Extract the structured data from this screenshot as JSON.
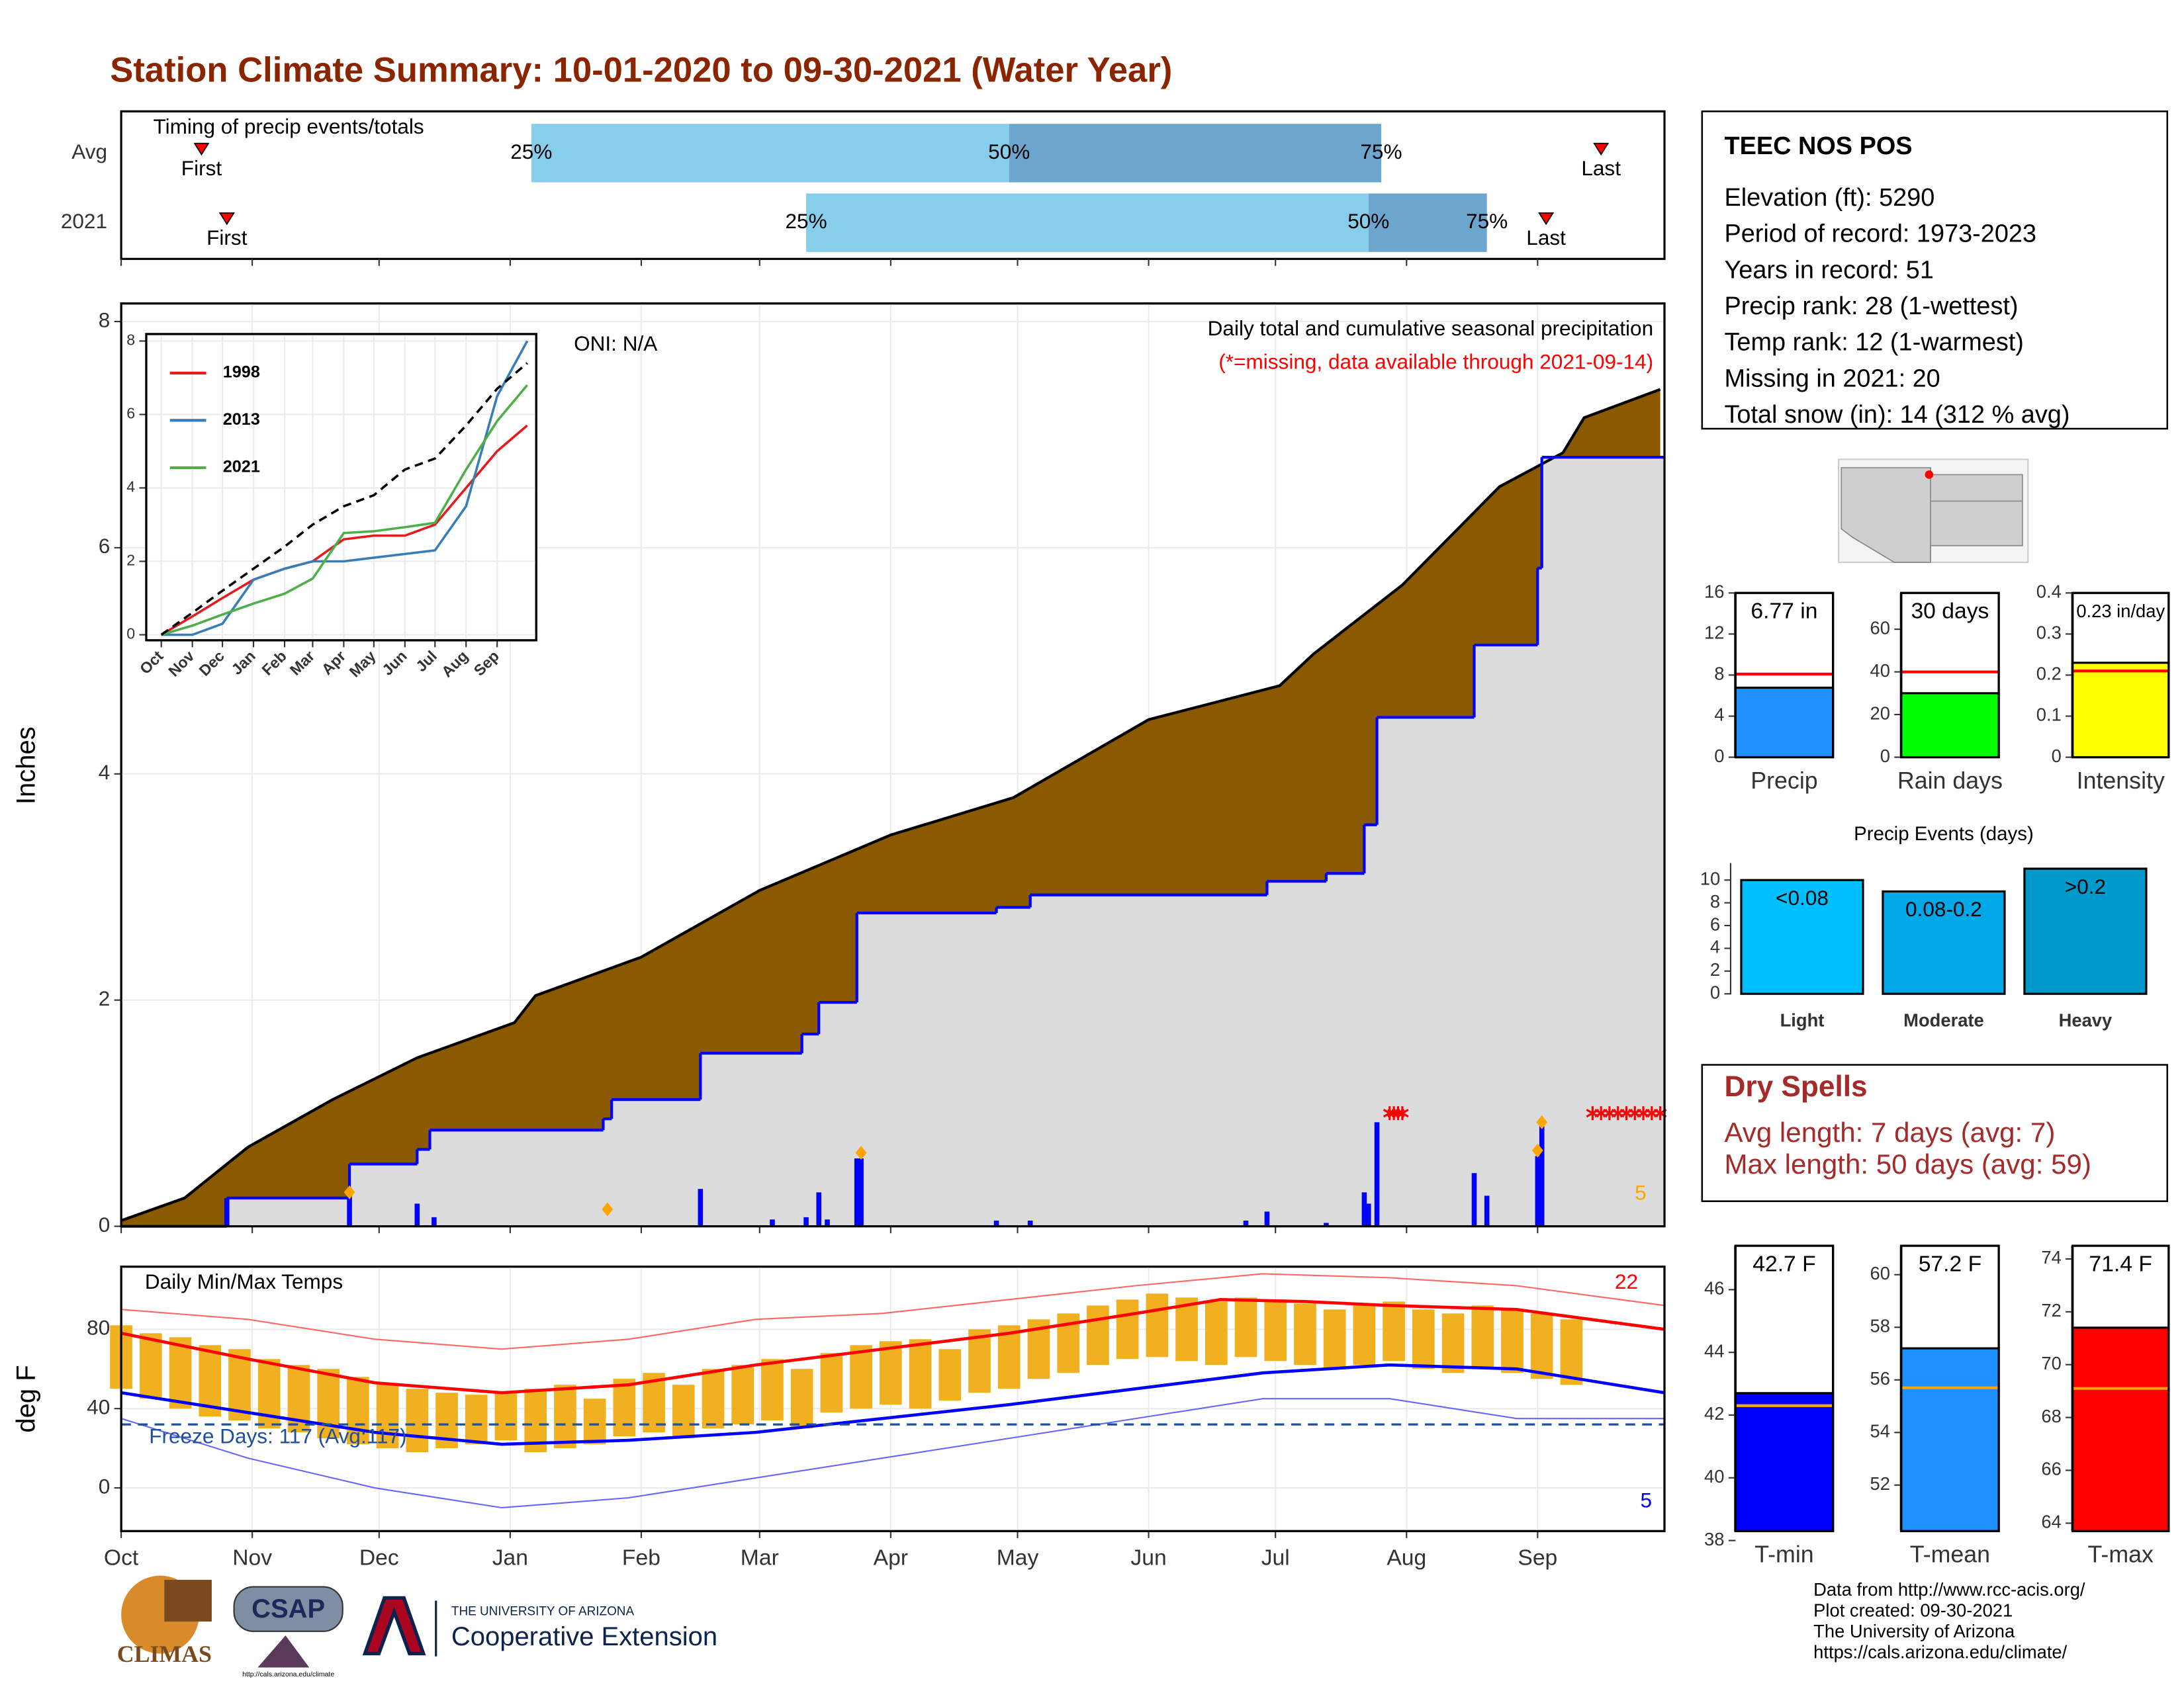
{
  "title": "Station Climate Summary: 10-01-2020 to 09-30-2021 (Water Year)",
  "chart_data": [
    {
      "type": "range",
      "title": "Timing of precip events/totals",
      "xlim": [
        0,
        365
      ],
      "xticks": [
        0,
        31,
        61,
        92,
        123,
        151,
        182,
        212,
        243,
        273,
        304,
        335
      ],
      "quantile_labels": [
        "25%",
        "50%",
        "75%"
      ],
      "first_label": "First",
      "last_label": "Last",
      "colors": [
        "#87ceeb",
        "#6ca6cd"
      ],
      "marker_color": "#ff0000",
      "rows": [
        {
          "name": "Avg",
          "first": 19,
          "quantiles": [
            97,
            210,
            298
          ],
          "last": 350
        },
        {
          "name": "2021",
          "first": 25,
          "quantiles": [
            162,
            295,
            323
          ],
          "last": 337
        }
      ]
    },
    {
      "type": "area",
      "ylabel": "Inches",
      "xlim": [
        0,
        365
      ],
      "ylim": [
        0,
        8.16
      ],
      "yticks": [
        0,
        2,
        4,
        6,
        8
      ],
      "xticks": [
        0,
        31,
        61,
        92,
        123,
        151,
        182,
        212,
        243,
        273,
        304,
        335
      ],
      "grid": true,
      "annotations": [
        "ONI: N/A",
        "Daily total and cumulative seasonal precipitation",
        "(*=missing, data available through 2021-09-14)",
        "5"
      ],
      "series": [
        {
          "color": "#000000",
          "fill": "#8b5a00",
          "x": [
            0,
            15,
            25,
            30,
            50,
            70,
            93,
            98,
            123,
            151,
            182,
            211,
            243,
            274,
            282,
            303,
            326,
            335,
            341,
            346,
            364
          ],
          "values": [
            0.05,
            0.25,
            0.55,
            0.7,
            1.12,
            1.49,
            1.8,
            2.04,
            2.38,
            2.97,
            3.46,
            3.79,
            4.48,
            4.78,
            5.06,
            5.67,
            6.54,
            6.72,
            6.84,
            7.15,
            7.4
          ]
        },
        {
          "color": "#0000ff",
          "fill": "#dcdcdc",
          "step": true,
          "x": [
            0,
            25,
            54,
            70,
            73,
            114,
            116,
            137,
            161,
            165,
            174,
            207,
            215,
            271,
            285,
            294,
            297,
            320,
            335,
            336
          ],
          "values": [
            0,
            0.25,
            0.55,
            0.68,
            0.85,
            0.95,
            1.12,
            1.53,
            1.7,
            1.98,
            2.77,
            2.82,
            2.93,
            3.05,
            3.12,
            3.55,
            4.5,
            5.14,
            5.82,
            6.8
          ]
        }
      ],
      "bars": {
        "color": "#0000ff",
        "x": [
          25,
          54,
          70,
          74,
          137,
          154,
          162,
          165,
          167,
          174,
          175,
          207,
          215,
          266,
          271,
          285,
          294,
          295,
          297,
          320,
          323,
          335,
          336
        ],
        "values": [
          0.25,
          0.27,
          0.2,
          0.08,
          0.33,
          0.06,
          0.08,
          0.3,
          0.06,
          0.6,
          0.6,
          0.05,
          0.05,
          0.05,
          0.13,
          0.03,
          0.3,
          0.2,
          0.92,
          0.47,
          0.27,
          0.62,
          0.92
        ]
      },
      "snow": {
        "color": "#ffa500",
        "x": [
          54,
          115,
          175,
          335,
          336
        ],
        "values": [
          0.3,
          0.15,
          0.65,
          0.67,
          0.92
        ]
      },
      "missing": {
        "color": "#ff0000",
        "x": [
          300,
          301,
          302,
          303,
          348,
          350,
          352,
          354,
          356,
          358,
          360,
          362,
          364
        ],
        "values": [
          1,
          1,
          1,
          1,
          1,
          1,
          1,
          1,
          1,
          1,
          1,
          1,
          1
        ]
      }
    },
    {
      "type": "line",
      "xlim": [
        -15,
        374
      ],
      "ylim": [
        -0.15,
        8.19
      ],
      "yticks": [
        0,
        2,
        4,
        6,
        8
      ],
      "xticks": [
        {
          "value": 0,
          "label": "Oct"
        },
        {
          "value": 31,
          "label": "Nov"
        },
        {
          "value": 61,
          "label": "Dec"
        },
        {
          "value": 92,
          "label": "Jan"
        },
        {
          "value": 123,
          "label": "Feb"
        },
        {
          "value": 151,
          "label": "Mar"
        },
        {
          "value": 182,
          "label": "Apr"
        },
        {
          "value": 212,
          "label": "May"
        },
        {
          "value": 243,
          "label": "Jun"
        },
        {
          "value": 273,
          "label": "Jul"
        },
        {
          "value": 304,
          "label": "Aug"
        },
        {
          "value": 335,
          "label": "Sep"
        }
      ],
      "grid": true,
      "legend": "top-left",
      "x": [
        0,
        31,
        61,
        92,
        123,
        151,
        182,
        212,
        243,
        273,
        304,
        335,
        365
      ],
      "series": [
        {
          "name": "1998",
          "color": "#e41a1c",
          "values": [
            0,
            0.5,
            1.0,
            1.5,
            1.8,
            2.0,
            2.6,
            2.7,
            2.7,
            3.0,
            4.0,
            5.0,
            5.7
          ]
        },
        {
          "name": "2013",
          "color": "#377eb8",
          "values": [
            0,
            0,
            0.3,
            1.5,
            1.8,
            2.0,
            2.0,
            2.1,
            2.2,
            2.3,
            3.5,
            6.5,
            8.0
          ]
        },
        {
          "name": "2021",
          "color": "#4daf4a",
          "values": [
            0,
            0.25,
            0.55,
            0.85,
            1.12,
            1.53,
            2.77,
            2.82,
            2.93,
            3.05,
            4.5,
            5.82,
            6.8
          ]
        },
        {
          "color": "#000000",
          "dashed": true,
          "values": [
            0,
            0.6,
            1.2,
            1.8,
            2.4,
            3.0,
            3.5,
            3.8,
            4.5,
            4.8,
            5.7,
            6.7,
            7.4
          ]
        }
      ]
    },
    {
      "type": "band",
      "ylabel": "deg F",
      "xlim": [
        0,
        365
      ],
      "ylim": [
        -21.8,
        111.6
      ],
      "yticks": [
        0,
        40,
        80
      ],
      "xticks": [
        {
          "value": 0,
          "label": "Oct"
        },
        {
          "value": 31,
          "label": "Nov"
        },
        {
          "value": 61,
          "label": "Dec"
        },
        {
          "value": 92,
          "label": "Jan"
        },
        {
          "value": 123,
          "label": "Feb"
        },
        {
          "value": 151,
          "label": "Mar"
        },
        {
          "value": 182,
          "label": "Apr"
        },
        {
          "value": 212,
          "label": "May"
        },
        {
          "value": 243,
          "label": "Jun"
        },
        {
          "value": 273,
          "label": "Jul"
        },
        {
          "value": 304,
          "label": "Aug"
        },
        {
          "value": 335,
          "label": "Sep"
        }
      ],
      "grid": true,
      "annotations": [
        "Daily Min/Max Temps",
        "Freeze Days: 117 (Avg:117)",
        "22",
        "5"
      ],
      "freeze": 32,
      "freeze_color": "#1f4e9c",
      "daily": {
        "color": "#f0b020",
        "x": [
          0,
          7,
          14,
          21,
          28,
          35,
          42,
          49,
          56,
          63,
          70,
          77,
          84,
          91,
          98,
          105,
          112,
          119,
          126,
          133,
          140,
          147,
          154,
          161,
          168,
          175,
          182,
          189,
          196,
          203,
          210,
          217,
          224,
          231,
          238,
          245,
          252,
          259,
          266,
          273,
          280,
          287,
          294,
          301,
          308,
          315,
          322,
          329,
          336,
          343
        ],
        "highs": [
          82,
          78,
          76,
          72,
          70,
          65,
          62,
          60,
          56,
          52,
          50,
          48,
          47,
          48,
          50,
          52,
          45,
          55,
          58,
          52,
          60,
          62,
          65,
          60,
          68,
          72,
          74,
          75,
          70,
          80,
          82,
          85,
          88,
          92,
          95,
          98,
          96,
          94,
          96,
          95,
          93,
          90,
          92,
          94,
          90,
          88,
          92,
          90,
          88,
          85
        ],
        "lows": [
          50,
          45,
          40,
          36,
          34,
          30,
          28,
          25,
          22,
          20,
          18,
          20,
          22,
          24,
          18,
          20,
          22,
          26,
          28,
          25,
          30,
          32,
          34,
          30,
          38,
          40,
          42,
          40,
          44,
          48,
          50,
          55,
          58,
          62,
          65,
          66,
          64,
          62,
          66,
          64,
          62,
          60,
          62,
          64,
          60,
          58,
          60,
          58,
          55,
          52
        ]
      },
      "series": [
        {
          "color": "#ff6666",
          "width": 1,
          "x": [
            0,
            30,
            60,
            90,
            120,
            150,
            180,
            210,
            240,
            270,
            300,
            330,
            365
          ],
          "values": [
            90,
            85,
            75,
            70,
            75,
            85,
            88,
            95,
            102,
            108,
            106,
            102,
            92
          ]
        },
        {
          "color": "#6666ff",
          "width": 1,
          "x": [
            0,
            30,
            60,
            90,
            120,
            150,
            180,
            210,
            240,
            270,
            300,
            330,
            365
          ],
          "values": [
            35,
            15,
            0,
            -10,
            -5,
            5,
            15,
            25,
            35,
            45,
            45,
            35,
            35
          ]
        },
        {
          "color": "#ff0000",
          "width": 2.2,
          "x": [
            0,
            30,
            60,
            90,
            120,
            150,
            180,
            210,
            240,
            260,
            280,
            300,
            330,
            365
          ],
          "values": [
            78,
            65,
            53,
            48,
            52,
            62,
            70,
            78,
            88,
            95,
            94,
            92,
            90,
            80
          ]
        },
        {
          "color": "#0000ff",
          "width": 2.2,
          "x": [
            0,
            30,
            60,
            90,
            120,
            150,
            180,
            210,
            240,
            270,
            300,
            330,
            365
          ],
          "values": [
            48,
            38,
            28,
            22,
            24,
            28,
            35,
            42,
            50,
            58,
            62,
            60,
            48
          ]
        }
      ]
    },
    {
      "type": "bar",
      "categories": [
        "Precip"
      ],
      "values": [
        6.77
      ],
      "value_labels": [
        "6.77 in"
      ],
      "avg": 8.1,
      "avg_color": "#ff0000",
      "color": "#1e90ff",
      "ylim": [
        0,
        16
      ],
      "yticks": [
        0,
        4,
        8,
        12,
        16
      ]
    },
    {
      "type": "bar",
      "categories": [
        "Rain days"
      ],
      "values": [
        30
      ],
      "value_labels": [
        "30 days"
      ],
      "avg": 40,
      "avg_color": "#ff0000",
      "color": "#00ff00",
      "ylim": [
        0,
        77
      ],
      "yticks": [
        0,
        20,
        40,
        60
      ]
    },
    {
      "type": "bar",
      "categories": [
        "Intensity"
      ],
      "values": [
        0.23
      ],
      "value_labels": [
        "0.23 in/day"
      ],
      "avg": 0.21,
      "avg_color": "#ff0000",
      "color": "#ffff00",
      "ylim": [
        0,
        0.4
      ],
      "yticks": [
        0,
        0.1,
        0.2,
        0.3,
        0.4
      ]
    },
    {
      "type": "bar",
      "title": "Precip Events (days)",
      "categories": [
        "Light",
        "Moderate",
        "Heavy"
      ],
      "values": [
        10,
        9,
        11
      ],
      "bin_labels": [
        "<0.08",
        "0.08-0.2",
        ">0.2"
      ],
      "colors": [
        "#00bfff",
        "#00a8e8",
        "#0099cc"
      ],
      "ylim": [
        0,
        11.5
      ],
      "yticks": [
        0,
        2,
        4,
        6,
        8,
        10
      ]
    },
    {
      "type": "bar",
      "categories": [
        "T-min"
      ],
      "values": [
        42.7
      ],
      "value_labels": [
        "42.7 F"
      ],
      "avg": 42.3,
      "avg_color": "#ffa500",
      "color": "#0000ff",
      "ylim": [
        38.3,
        47.4
      ],
      "yticks": [
        38,
        40,
        42,
        44,
        46
      ]
    },
    {
      "type": "bar",
      "categories": [
        "T-mean"
      ],
      "values": [
        57.2
      ],
      "value_labels": [
        "57.2 F"
      ],
      "avg": 55.7,
      "avg_color": "#ffa500",
      "color": "#1e90ff",
      "ylim": [
        50.25,
        61.1
      ],
      "yticks": [
        52,
        54,
        56,
        58,
        60
      ]
    },
    {
      "type": "bar",
      "categories": [
        "T-max"
      ],
      "values": [
        71.4
      ],
      "value_labels": [
        "71.4 F"
      ],
      "avg": 69.1,
      "avg_color": "#ffa500",
      "color": "#ff0000",
      "ylim": [
        63.7,
        74.5
      ],
      "yticks": [
        64,
        66,
        68,
        70,
        72,
        74
      ]
    }
  ],
  "station": {
    "name": "TEEC NOS POS",
    "lines": [
      "Elevation (ft): 5290",
      "Period of record: 1973-2023",
      "Years in record: 51",
      "Precip rank: 28 (1-wettest)",
      "Temp rank: 12 (1-warmest)",
      "Missing in 2021: 20",
      "Total snow (in): 14 (312 % avg)"
    ]
  },
  "dry_spells": {
    "title": "Dry Spells",
    "lines": [
      "Avg length: 7 days (avg: 7)",
      "Max length: 50 days (avg: 59)"
    ]
  },
  "footer": [
    "Data from http://www.rcc-acis.org/",
    "Plot created: 09-30-2021",
    "The University of Arizona",
    "https://cals.arizona.edu/climate/"
  ],
  "logos": {
    "climas": "CLIMAS",
    "csap": "CSAP",
    "csap_url": "http://cals.arizona.edu/climate",
    "ua": "THE UNIVERSITY OF ARIZONA",
    "extension": "Cooperative Extension"
  }
}
